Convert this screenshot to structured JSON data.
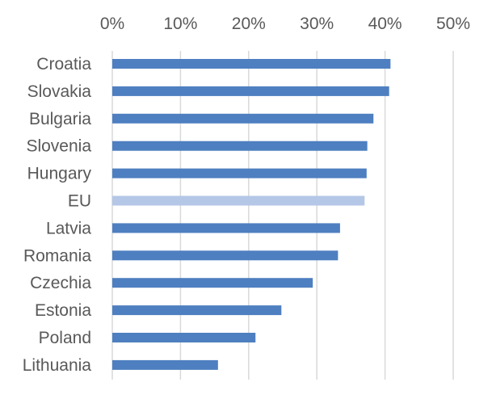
{
  "chart_data": {
    "type": "bar",
    "orientation": "horizontal",
    "categories": [
      "Croatia",
      "Slovakia",
      "Bulgaria",
      "Slovenia",
      "Hungary",
      "EU",
      "Latvia",
      "Romania",
      "Czechia",
      "Estonia",
      "Poland",
      "Lithuania"
    ],
    "values": [
      40.8,
      40.6,
      38.3,
      37.4,
      37.3,
      37.0,
      33.4,
      33.1,
      29.4,
      24.8,
      21.0,
      15.5
    ],
    "highlight": "EU",
    "xlim": [
      0,
      50
    ],
    "xticks": [
      "0%",
      "10%",
      "20%",
      "30%",
      "40%",
      "50%"
    ],
    "axis_position": "top",
    "grid": true,
    "title": "",
    "xlabel": "",
    "ylabel": "",
    "colors": {
      "bar": "#4e7fc0",
      "highlight": "#b4c7e7",
      "grid": "#d9d9d9",
      "text": "#595959"
    }
  }
}
